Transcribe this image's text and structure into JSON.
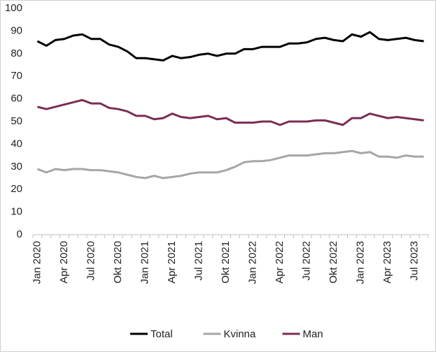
{
  "chart_data": {
    "type": "line",
    "categories": [
      "Jan 2020",
      null,
      null,
      "Apr 2020",
      null,
      null,
      "Jul 2020",
      null,
      null,
      "Okt 2020",
      null,
      null,
      "Jan 2021",
      null,
      null,
      "Apr 2021",
      null,
      null,
      "Jul 2021",
      null,
      null,
      "Okt 2021",
      null,
      null,
      "Jan 2022",
      null,
      null,
      "Apr 2022",
      null,
      null,
      "Jul 2022",
      null,
      null,
      "Okt 2022",
      null,
      null,
      "Jan 2023",
      null,
      null,
      "Apr 2023",
      null,
      null,
      "Jul 2023",
      null
    ],
    "series": [
      {
        "name": "Total",
        "color": "#000000",
        "values": [
          85.5,
          83.5,
          86,
          86.5,
          88,
          88.5,
          86.5,
          86.5,
          84,
          83,
          81,
          78,
          78,
          77.5,
          77,
          79,
          78,
          78.5,
          79.5,
          80,
          79,
          80,
          80,
          82,
          82,
          83,
          83,
          83,
          84.5,
          84.5,
          85,
          86.5,
          87,
          86,
          85.5,
          88.5,
          87.5,
          89.5,
          86.5,
          86,
          86.5,
          87,
          86,
          85.5
        ]
      },
      {
        "name": "Kvinna",
        "color": "#a6a6a6",
        "values": [
          29,
          27.5,
          29,
          28.5,
          29,
          29,
          28.5,
          28.5,
          28,
          27.5,
          26.5,
          25.5,
          25,
          26,
          25,
          25.5,
          26,
          27,
          27.5,
          27.5,
          27.5,
          28.5,
          30,
          32,
          32.5,
          32.5,
          33,
          34,
          35,
          35,
          35,
          35.5,
          36,
          36,
          36.5,
          37,
          36,
          36.5,
          34.5,
          34.5,
          34,
          35,
          34.5,
          34.5
        ]
      },
      {
        "name": "Man",
        "color": "#7b2c55",
        "values": [
          56.5,
          55.5,
          56.5,
          57.5,
          58.5,
          59.5,
          58,
          58,
          56,
          55.5,
          54.5,
          52.5,
          52.5,
          51,
          51.5,
          53.5,
          52,
          51.5,
          52,
          52.5,
          51,
          51.5,
          49.5,
          49.5,
          49.5,
          50,
          50,
          48.5,
          50,
          50,
          50,
          50.5,
          50.5,
          49.5,
          48.5,
          51.5,
          51.5,
          53.5,
          52.5,
          51.5,
          52,
          51.5,
          51,
          50.5
        ]
      }
    ],
    "ylim": [
      0,
      100
    ],
    "yticks": [
      0,
      10,
      20,
      30,
      40,
      50,
      60,
      70,
      80,
      90,
      100
    ],
    "grid": false,
    "legend": "bottom"
  }
}
